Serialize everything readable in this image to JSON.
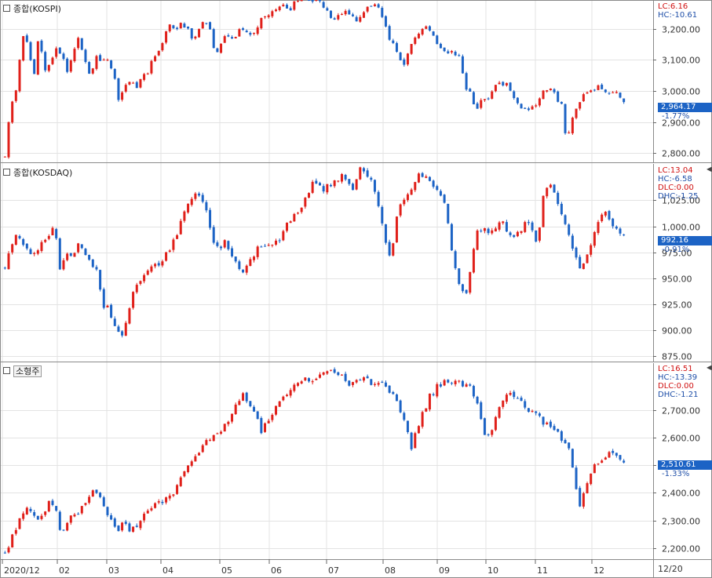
{
  "chart_data": [
    {
      "type": "candlestick",
      "title": "종합(KOSPI)",
      "y_ticks": [
        "3,200.00",
        "3,100.00",
        "3,000.00",
        "2,900.00",
        "2,800.00"
      ],
      "ylim": [
        2770,
        3290
      ],
      "info": {
        "lc": "LC:6.16",
        "hc": "HC:-10.61"
      },
      "last_value": "2,964.17",
      "last_change": "-1.77%",
      "path": [
        2790,
        2960,
        3000,
        3175,
        3165,
        3035,
        3180,
        3060,
        3100,
        3140,
        3115,
        3065,
        3130,
        3170,
        3110,
        3040,
        3115,
        3085,
        3100,
        3060,
        2975,
        3000,
        3040,
        3000,
        3040,
        3050,
        3100,
        3130,
        3170,
        3210,
        3200,
        3220,
        3205,
        3170,
        3195,
        3225,
        3200,
        3125,
        3145,
        3180,
        3165,
        3190,
        3200,
        3175,
        3190,
        3230,
        3240,
        3255,
        3265,
        3270,
        3255,
        3290,
        3300,
        3305,
        3285,
        3300,
        3265,
        3245,
        3225,
        3240,
        3250,
        3245,
        3230,
        3255,
        3265,
        3275,
        3255,
        3205,
        3160,
        3120,
        3080,
        3120,
        3165,
        3180,
        3210,
        3200,
        3160,
        3140,
        3125,
        3130,
        3110,
        3010,
        2990,
        2940,
        2975,
        2960,
        3010,
        3030,
        3020,
        3010,
        2960,
        2940,
        2930,
        2945,
        2970,
        3010,
        3010,
        2980,
        2960,
        2830,
        2915,
        2960,
        2985,
        2990,
        3010,
        3010,
        2995,
        3000,
        2985,
        2964
      ]
    },
    {
      "type": "candlestick",
      "title": "종합(KOSDAQ)",
      "y_ticks": [
        "1,025.00",
        "1,000.00",
        "975.00",
        "950.00",
        "925.00",
        "900.00",
        "875.00"
      ],
      "ylim": [
        870,
        1060
      ],
      "info": {
        "lc": "LC:13.04",
        "hc": "HC:-6.58",
        "dlc": "DLC:0.00",
        "dhc": "DHC:-1.25"
      },
      "last_value": "992.16",
      "last_change": "-0.91%",
      "path": [
        960,
        985,
        990,
        985,
        975,
        970,
        985,
        990,
        1000,
        960,
        975,
        970,
        985,
        975,
        965,
        955,
        925,
        920,
        905,
        890,
        915,
        940,
        950,
        955,
        960,
        965,
        970,
        980,
        990,
        1010,
        1025,
        1030,
        1025,
        1015,
        985,
        975,
        990,
        970,
        960,
        955,
        965,
        975,
        985,
        980,
        985,
        990,
        1000,
        1010,
        1015,
        1025,
        1040,
        1045,
        1035,
        1040,
        1045,
        1050,
        1045,
        1035,
        1055,
        1050,
        1040,
        1020,
        985,
        970,
        1010,
        1025,
        1035,
        1045,
        1050,
        1045,
        1040,
        1030,
        1020,
        970,
        945,
        930,
        960,
        995,
        1000,
        995,
        1000,
        1005,
        995,
        990,
        995,
        1005,
        995,
        985,
        1035,
        1040,
        1025,
        1010,
        990,
        970,
        960,
        975,
        990,
        1010,
        1015,
        1000,
        998,
        992
      ]
    },
    {
      "type": "candlestick",
      "title": "소형주",
      "y_ticks": [
        "2,700.00",
        "2,600.00",
        "2,500.00",
        "2,400.00",
        "2,300.00",
        "2,200.00"
      ],
      "ylim": [
        2160,
        2870
      ],
      "info": {
        "lc": "LC:16.51",
        "hc": "HC:-13.39",
        "dlc": "DLC:0.00",
        "dhc": "DHC:-1.21"
      },
      "last_value": "2,510.61",
      "last_change": "-1.33%",
      "path": [
        2180,
        2230,
        2290,
        2330,
        2345,
        2300,
        2320,
        2370,
        2360,
        2230,
        2290,
        2320,
        2340,
        2370,
        2410,
        2400,
        2350,
        2300,
        2265,
        2290,
        2260,
        2285,
        2310,
        2330,
        2350,
        2370,
        2380,
        2400,
        2440,
        2480,
        2520,
        2545,
        2575,
        2600,
        2610,
        2640,
        2660,
        2720,
        2760,
        2730,
        2690,
        2620,
        2660,
        2700,
        2740,
        2760,
        2780,
        2800,
        2810,
        2815,
        2820,
        2830,
        2835,
        2840,
        2830,
        2780,
        2800,
        2810,
        2805,
        2800,
        2795,
        2780,
        2750,
        2720,
        2650,
        2560,
        2640,
        2700,
        2750,
        2780,
        2800,
        2805,
        2800,
        2800,
        2790,
        2760,
        2680,
        2600,
        2640,
        2700,
        2750,
        2760,
        2740,
        2720,
        2700,
        2680,
        2660,
        2640,
        2620,
        2600,
        2580,
        2460,
        2360,
        2430,
        2490,
        2510,
        2530,
        2540,
        2520,
        2510
      ]
    }
  ],
  "x_axis": {
    "labels": [
      "2020/12",
      "02",
      "03",
      "04",
      "05",
      "06",
      "07",
      "08",
      "09",
      "10",
      "11",
      "12"
    ],
    "date_label": "12/20"
  },
  "colors": {
    "up": "#e0201a",
    "down": "#1c63c5",
    "grid": "#e3e3e3",
    "border": "#8a8a8a"
  }
}
